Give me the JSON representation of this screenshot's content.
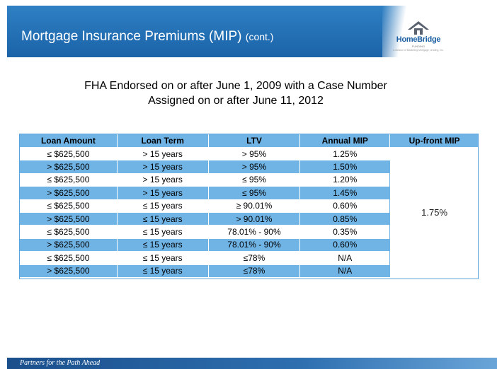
{
  "header": {
    "title": "Mortgage Insurance Premiums (MIP)",
    "title_suffix": "(cont.)",
    "logo_name": "HomeBridge",
    "logo_sub": "FUNDING",
    "logo_tagline": "A division of Marketing Mortgage Lending, Inc."
  },
  "subtitle": {
    "line1": "FHA Endorsed on or after June 1, 2009 with a Case Number",
    "line2": "Assigned on or after June 11, 2012"
  },
  "table": {
    "headers": [
      "Loan Amount",
      "Loan Term",
      "LTV",
      "Annual MIP",
      "Up-front MIP"
    ],
    "rows": [
      [
        "≤ $625,500",
        "> 15 years",
        "> 95%",
        "1.25%"
      ],
      [
        "> $625,500",
        "> 15 years",
        "> 95%",
        "1.50%"
      ],
      [
        "≤ $625,500",
        "> 15 years",
        "≤ 95%",
        "1.20%"
      ],
      [
        "> $625,500",
        "> 15 years",
        "≤ 95%",
        "1.45%"
      ],
      [
        "≤ $625,500",
        "≤ 15 years",
        "≥ 90.01%",
        "0.60%"
      ],
      [
        "> $625,500",
        "≤ 15 years",
        "> 90.01%",
        "0.85%"
      ],
      [
        "≤ $625,500",
        "≤ 15 years",
        "78.01% - 90%",
        "0.35%"
      ],
      [
        "> $625,500",
        "≤ 15 years",
        "78.01% - 90%",
        "0.60%"
      ],
      [
        "≤ $625,500",
        "≤ 15 years",
        "≤78%",
        "N/A"
      ],
      [
        "> $625,500",
        "≤ 15 years",
        "≤78%",
        "N/A"
      ]
    ],
    "upfront_mip": "1.75%"
  },
  "footer": {
    "tagline": "Partners for the Path Ahead"
  },
  "colors": {
    "header_blue": "#1b63a8",
    "row_blue": "#70b4e6"
  }
}
